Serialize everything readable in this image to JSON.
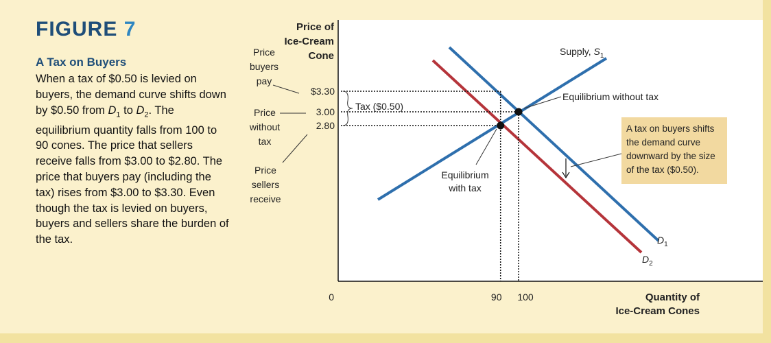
{
  "figure": {
    "label": "FIGURE",
    "number": "7",
    "caption_title": "A Tax on Buyers",
    "caption_parts": [
      {
        "t": "When a tax of $0.50 is levied on buyers, the demand curve shifts down by $0.50 from "
      },
      {
        "t": "D",
        "i": true
      },
      {
        "t": "1",
        "sub": true
      },
      {
        "t": " to "
      },
      {
        "t": "D",
        "i": true
      },
      {
        "t": "2",
        "sub": true
      },
      {
        "t": ". The equilibrium quantity falls from 100 to 90 cones. The price that sellers receive falls from $3.00 to $2.80. The price that buyers pay (including the tax) rises from $3.00 to $3.30. Even though the tax is levied on buyers, buyers and sellers share the burden of the tax."
      }
    ]
  },
  "side_labels": {
    "buyers_pay": [
      "Price",
      "buyers",
      "pay"
    ],
    "without_tax": [
      "Price",
      "without",
      "tax"
    ],
    "sellers_receive": [
      "Price",
      "sellers",
      "receive"
    ]
  },
  "chart_data": {
    "type": "line",
    "ylabel": [
      "Price of",
      "Ice-Cream",
      "Cone"
    ],
    "xlabel": [
      "Quantity of",
      "Ice-Cream Cones"
    ],
    "origin_label": "0",
    "y_tick_labels": [
      {
        "value": 3.3,
        "label": "$3.30"
      },
      {
        "value": 3.0,
        "label": "3.00"
      },
      {
        "value": 2.8,
        "label": "2.80"
      }
    ],
    "x_tick_labels": [
      {
        "value": 90,
        "label": "90"
      },
      {
        "value": 100,
        "label": "100"
      }
    ],
    "series": [
      {
        "key": "supply",
        "label": "Supply, ",
        "label_symbol": "S",
        "label_sub": "1",
        "color": "#2e6fad"
      },
      {
        "key": "d1",
        "label": "",
        "label_symbol": "D",
        "label_sub": "1",
        "color": "#2e6fad"
      },
      {
        "key": "d2",
        "label": "",
        "label_symbol": "D",
        "label_sub": "2",
        "color": "#b5343a"
      }
    ],
    "equilibria": [
      {
        "q": 100,
        "p": 3.0,
        "label": "Equilibrium without tax"
      },
      {
        "q": 90,
        "p": 2.8,
        "label": [
          "Equilibrium",
          "with tax"
        ]
      }
    ],
    "tax_bracket_label": "Tax ($0.50)",
    "shift_annotation": [
      "A tax on buyers shifts",
      "the demand curve",
      "downward by the size",
      "of the tax ($0.50)."
    ],
    "colors": {
      "blue": "#2e6fad",
      "red": "#b5343a",
      "annotation_bg": "#f2d9a0"
    }
  }
}
